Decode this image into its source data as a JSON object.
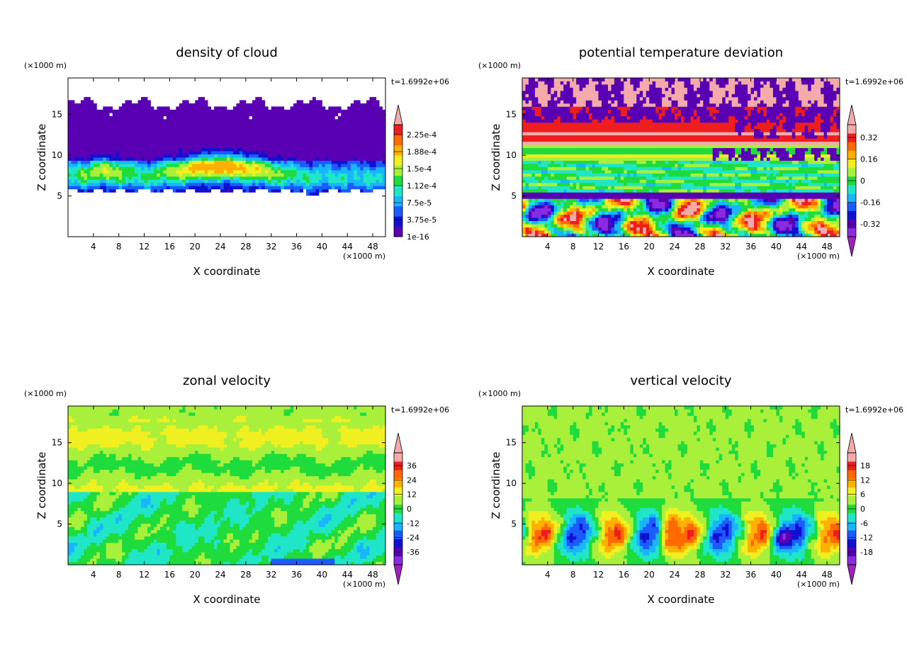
{
  "panels": [
    {
      "title": "density of cloud",
      "time_label": "t=1.6992e+06",
      "xlabel": "X coordinate",
      "ylabel": "Z coordinate",
      "x_unit": "(×1000 m)",
      "y_unit": "(×1000 m)",
      "colorbar_labels": [
        "2.25e-4",
        "1.88e-4",
        "1.5e-4",
        "1.12e-4",
        "7.5e-5",
        "3.75e-5",
        "1e-16"
      ]
    },
    {
      "title": "potential temperature deviation",
      "time_label": "t=1.6992e+06",
      "xlabel": "X coordinate",
      "ylabel": "Z coordinate",
      "x_unit": "(×1000 m)",
      "y_unit": "(×1000 m)",
      "colorbar_labels": [
        "0.32",
        "0.16",
        "0",
        "-0.16",
        "-0.32"
      ]
    },
    {
      "title": "zonal velocity",
      "time_label": "t=1.6992e+06",
      "xlabel": "X coordinate",
      "ylabel": "Z coordinate",
      "x_unit": "(×1000 m)",
      "y_unit": "(×1000 m)",
      "colorbar_labels": [
        "36",
        "24",
        "12",
        "0",
        "-12",
        "-24",
        "-36"
      ]
    },
    {
      "title": "vertical velocity",
      "time_label": "t=1.6992e+06",
      "xlabel": "X coordinate",
      "ylabel": "Z coordinate",
      "x_unit": "(×1000 m)",
      "y_unit": "(×1000 m)",
      "colorbar_labels": [
        "18",
        "12",
        "6",
        "0",
        "-6",
        "-12",
        "-18"
      ]
    }
  ],
  "chart_data": [
    {
      "type": "heatmap",
      "title": "density of cloud",
      "xlabel": "X coordinate",
      "ylabel": "Z coordinate",
      "xlim": [
        0,
        50
      ],
      "ylim": [
        0,
        19.5
      ],
      "x_ticks": [
        4,
        8,
        12,
        16,
        20,
        24,
        28,
        32,
        36,
        40,
        44,
        48
      ],
      "y_ticks": [
        5,
        10,
        15
      ],
      "colorbar_levels": [
        1e-16,
        3.75e-05,
        7.5e-05,
        0.000112,
        0.00015,
        0.000188,
        0.000225
      ],
      "field": "cloud"
    },
    {
      "type": "heatmap",
      "title": "potential temperature deviation",
      "xlabel": "X coordinate",
      "ylabel": "Z coordinate",
      "xlim": [
        0,
        50
      ],
      "ylim": [
        0,
        19.5
      ],
      "x_ticks": [
        4,
        8,
        12,
        16,
        20,
        24,
        28,
        32,
        36,
        40,
        44,
        48
      ],
      "y_ticks": [
        5,
        10,
        15
      ],
      "colorbar_levels": [
        -0.32,
        -0.16,
        0,
        0.16,
        0.32
      ],
      "field": "theta"
    },
    {
      "type": "heatmap",
      "title": "zonal velocity",
      "xlabel": "X coordinate",
      "ylabel": "Z coordinate",
      "xlim": [
        0,
        50
      ],
      "ylim": [
        0,
        19.5
      ],
      "x_ticks": [
        4,
        8,
        12,
        16,
        20,
        24,
        28,
        32,
        36,
        40,
        44,
        48
      ],
      "y_ticks": [
        5,
        10,
        15
      ],
      "colorbar_levels": [
        -36,
        -24,
        -12,
        0,
        12,
        24,
        36
      ],
      "field": "u"
    },
    {
      "type": "heatmap",
      "title": "vertical velocity",
      "xlabel": "X coordinate",
      "ylabel": "Z coordinate",
      "xlim": [
        0,
        50
      ],
      "ylim": [
        0,
        19.5
      ],
      "x_ticks": [
        4,
        8,
        12,
        16,
        20,
        24,
        28,
        32,
        36,
        40,
        44,
        48
      ],
      "y_ticks": [
        5,
        10,
        15
      ],
      "colorbar_levels": [
        -18,
        -12,
        -6,
        0,
        6,
        12,
        18
      ],
      "field": "w"
    }
  ],
  "colors": {
    "palette": [
      "#8a2be2",
      "#5a00b4",
      "#1010d0",
      "#1a5cff",
      "#18b6ff",
      "#20e6c8",
      "#1edc3c",
      "#a8f03a",
      "#f0f020",
      "#ffb000",
      "#ff6a00",
      "#ee1e1e",
      "#f4aaaa"
    ],
    "over": "#f4aaaa",
    "under": "#a020c0"
  }
}
